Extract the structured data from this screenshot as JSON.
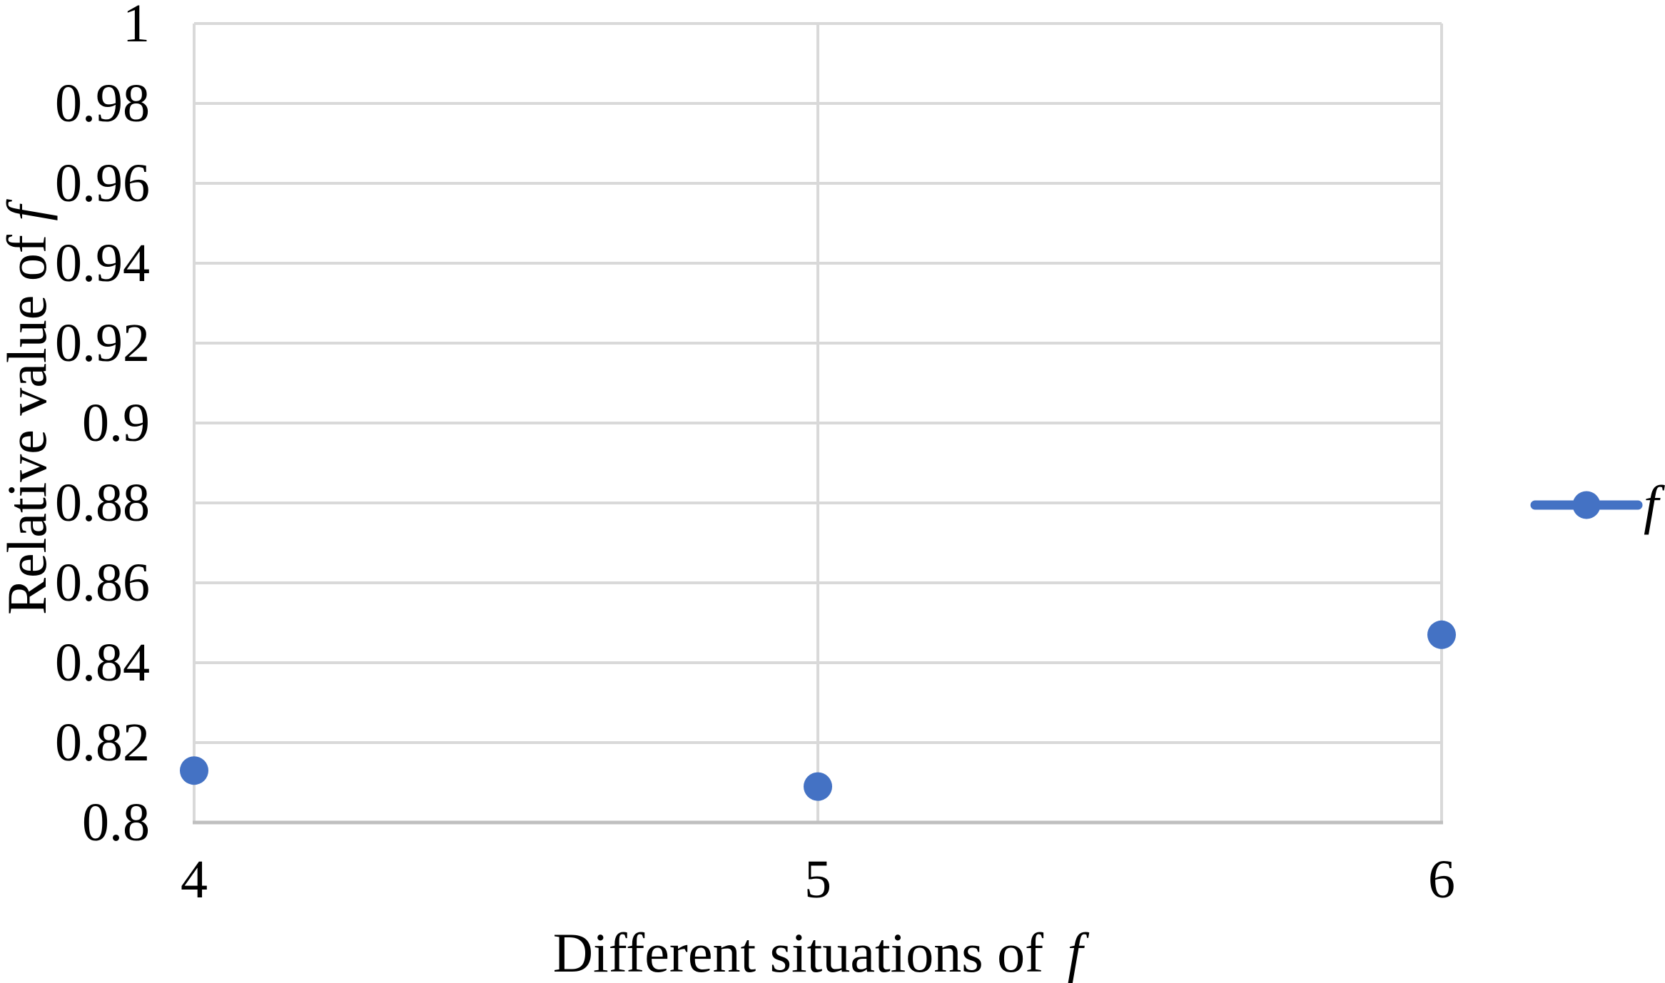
{
  "chart_data": {
    "type": "scatter",
    "xlabel": "Different situations of f",
    "xlabel_parts": {
      "text": "Different situations of ",
      "italic": "f"
    },
    "ylabel": "Relative value of f",
    "ylabel_parts": {
      "text": "Relative value of ",
      "italic": "f"
    },
    "xlim": [
      4,
      6
    ],
    "ylim": [
      0.8,
      1
    ],
    "x_ticks": [
      4,
      5,
      6
    ],
    "x_tick_labels": [
      "4",
      "5",
      "6"
    ],
    "y_ticks": [
      0.8,
      0.82,
      0.84,
      0.86,
      0.88,
      0.9,
      0.92,
      0.94,
      0.96,
      0.98,
      1
    ],
    "y_tick_labels": [
      "0.8",
      "0.82",
      "0.84",
      "0.86",
      "0.88",
      "0.9",
      "0.92",
      "0.94",
      "0.96",
      "0.98",
      "1"
    ],
    "grid": true,
    "legend": {
      "position": "right",
      "entries": [
        {
          "label": "f",
          "color": "#4472C4",
          "marker": "circle-on-line"
        }
      ]
    },
    "series": [
      {
        "name": "f",
        "x": [
          4,
          5,
          6
        ],
        "y": [
          0.813,
          0.809,
          0.847
        ]
      }
    ]
  },
  "colors": {
    "series": "#4472C4",
    "gridline": "#D9D9D9",
    "axis_line": "#BFBFBF",
    "text": "#000000",
    "background": "#FFFFFF"
  }
}
